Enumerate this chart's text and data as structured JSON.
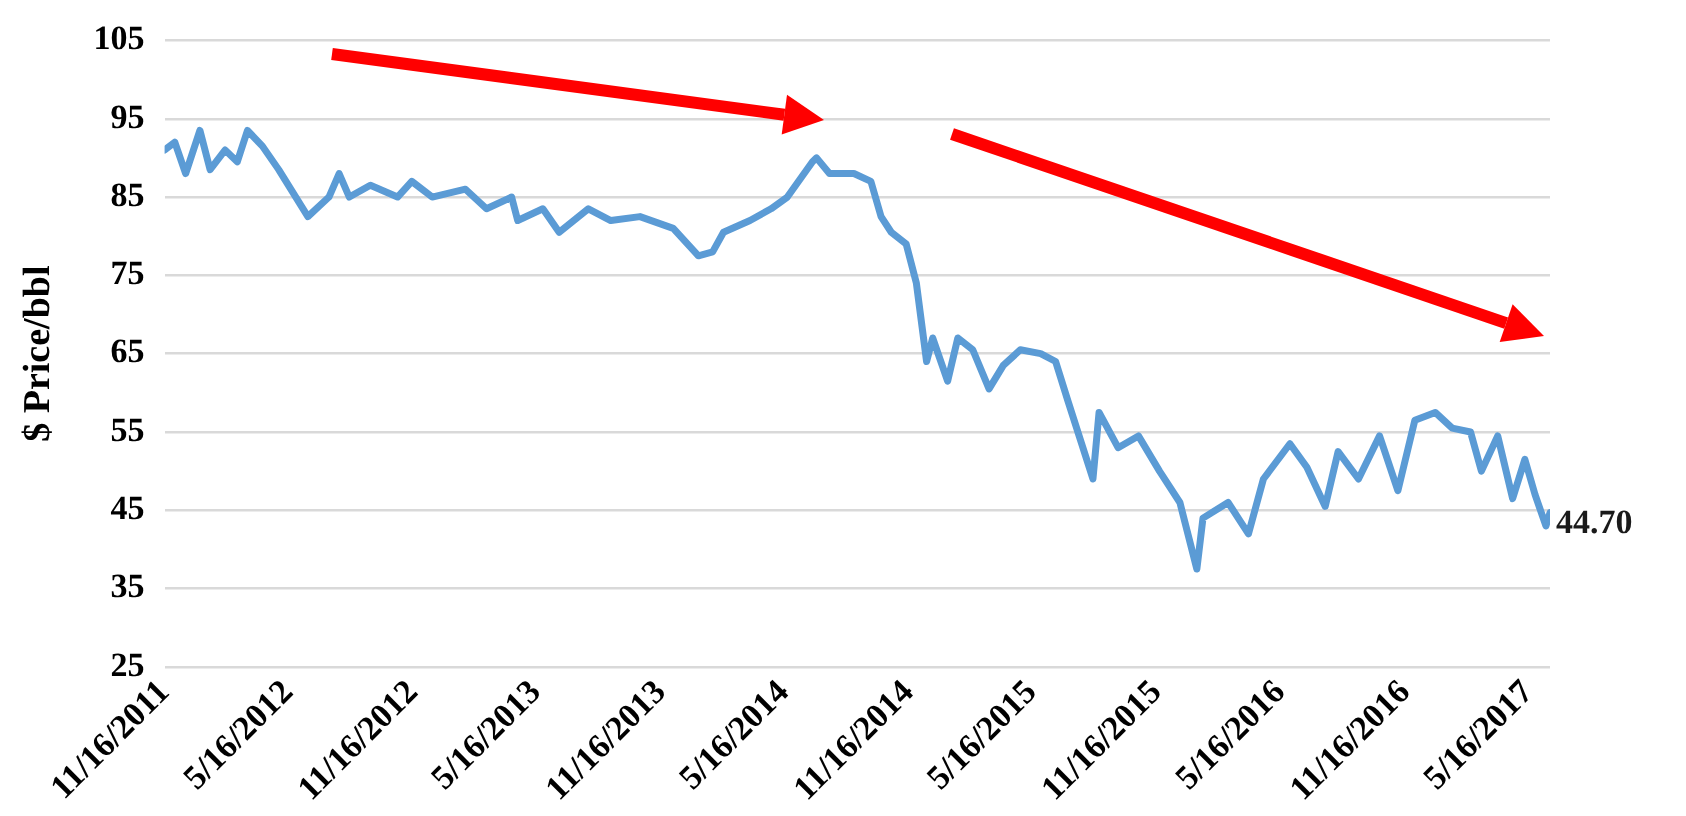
{
  "chart_data": {
    "type": "line",
    "ylabel": "$ Price/bbl",
    "grid": "y",
    "marker": "none",
    "line_style": "solid",
    "xlim": [
      "2011-11-16",
      "2017-06-17"
    ],
    "xticks": [
      {
        "value": "2011-11-16",
        "label": "11/16/2011"
      },
      {
        "value": "2012-05-16",
        "label": "5/16/2012"
      },
      {
        "value": "2012-11-16",
        "label": "11/16/2012"
      },
      {
        "value": "2013-05-16",
        "label": "5/16/2013"
      },
      {
        "value": "2013-11-16",
        "label": "11/16/2013"
      },
      {
        "value": "2014-05-16",
        "label": "5/16/2014"
      },
      {
        "value": "2014-11-16",
        "label": "11/16/2014"
      },
      {
        "value": "2015-05-16",
        "label": "5/16/2015"
      },
      {
        "value": "2015-11-16",
        "label": "11/16/2015"
      },
      {
        "value": "2016-05-16",
        "label": "5/16/2016"
      },
      {
        "value": "2016-11-16",
        "label": "11/16/2016"
      },
      {
        "value": "2017-05-16",
        "label": "5/16/2017"
      }
    ],
    "ylim": [
      25,
      105
    ],
    "yticks": [
      25,
      35,
      45,
      55,
      65,
      75,
      85,
      95,
      105
    ],
    "x": [
      "2011-11-16",
      "2011-12-01",
      "2011-12-17",
      "2012-01-07",
      "2012-01-22",
      "2012-02-13",
      "2012-03-02",
      "2012-03-17",
      "2012-04-08",
      "2012-05-02",
      "2012-06-14",
      "2012-07-15",
      "2012-07-30",
      "2012-08-14",
      "2012-09-14",
      "2012-10-24",
      "2012-11-14",
      "2012-12-14",
      "2013-02-01",
      "2013-03-04",
      "2013-04-10",
      "2013-04-19",
      "2013-05-26",
      "2013-06-19",
      "2013-08-01",
      "2013-09-03",
      "2013-10-16",
      "2013-12-04",
      "2014-01-10",
      "2014-01-31",
      "2014-02-16",
      "2014-03-27",
      "2014-04-27",
      "2014-05-21",
      "2014-06-27",
      "2014-07-03",
      "2014-07-22",
      "2014-08-27",
      "2014-09-21",
      "2014-10-06",
      "2014-10-21",
      "2014-11-12",
      "2014-11-27",
      "2014-12-12",
      "2014-12-21",
      "2015-01-12",
      "2015-01-27",
      "2015-02-18",
      "2015-03-14",
      "2015-04-04",
      "2015-04-29",
      "2015-05-29",
      "2015-06-20",
      "2015-07-08",
      "2015-08-14",
      "2015-08-23",
      "2015-09-20",
      "2015-10-20",
      "2015-11-20",
      "2015-12-20",
      "2016-01-14",
      "2016-01-23",
      "2016-02-29",
      "2016-03-30",
      "2016-04-21",
      "2016-05-30",
      "2016-06-24",
      "2016-07-21",
      "2016-08-09",
      "2016-09-08",
      "2016-10-09",
      "2016-11-05",
      "2016-11-30",
      "2016-12-30",
      "2017-01-24",
      "2017-02-20",
      "2017-03-08",
      "2017-04-01",
      "2017-04-23",
      "2017-05-11",
      "2017-05-26",
      "2017-06-11",
      "2017-06-17"
    ],
    "series": [
      {
        "color": "#5b9bd5",
        "values": [
          91,
          92,
          88,
          93.5,
          88.5,
          91,
          89.5,
          93.5,
          91.5,
          88.5,
          82.5,
          85,
          88,
          85,
          86.5,
          85,
          87,
          85,
          86,
          83.5,
          85,
          82,
          83.5,
          80.5,
          83.5,
          82,
          82.5,
          81,
          77.5,
          78,
          80.5,
          82,
          83.5,
          85,
          89.5,
          90,
          88,
          88,
          87,
          82.5,
          80.5,
          79,
          74,
          64,
          67,
          61.5,
          67,
          65.5,
          60.5,
          63.5,
          65.5,
          65,
          64,
          59,
          49,
          57.5,
          53,
          54.5,
          50,
          46,
          37.5,
          44,
          46,
          42,
          49,
          53.5,
          50.5,
          45.5,
          52.5,
          49,
          54.5,
          47.5,
          56.5,
          57.5,
          55.5,
          55,
          50,
          54.5,
          46.5,
          51.5,
          47,
          43,
          44.7
        ]
      }
    ],
    "annotations": [
      {
        "text": "44.70",
        "x": "2017-06-17",
        "y": 44.7
      }
    ]
  }
}
